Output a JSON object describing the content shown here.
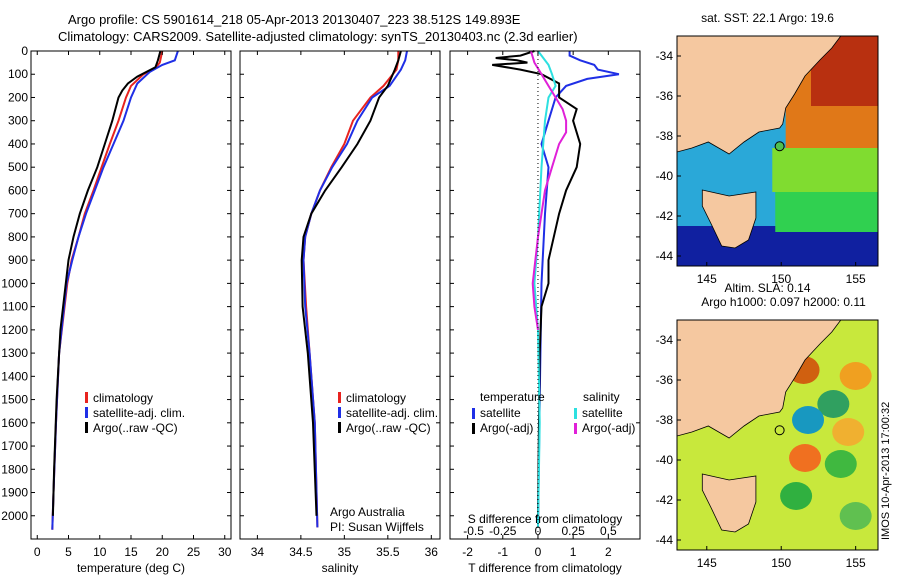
{
  "title": {
    "line1": "Argo profile: CS 5901614_218 05-Apr-2013 20130407_223 38.512S 149.893E",
    "line2": "Climatology: CARS2009. Satellite-adjusted climatology: synTS_20130403.nc (2.3d earlier)"
  },
  "colors": {
    "climatology": "#e8231f",
    "satellite": "#1f2fe6",
    "argo": "#000000",
    "s_satellite": "#2de0e0",
    "s_argo": "#e020d8"
  },
  "chart_data": [
    {
      "type": "line",
      "name": "temperature-profile",
      "xlabel": "temperature (deg C)",
      "ylabel": "",
      "xlim": [
        -1,
        31
      ],
      "ylim": [
        2100,
        0
      ],
      "xticks": [
        0,
        5,
        10,
        15,
        20,
        25,
        30
      ],
      "yticks": [
        0,
        100,
        200,
        300,
        400,
        500,
        600,
        700,
        800,
        900,
        1000,
        1100,
        1200,
        1300,
        1400,
        1500,
        1600,
        1700,
        1800,
        1900,
        2000
      ],
      "legend": [
        "climatology",
        "satellite-adj. clim.",
        "Argo(..raw -QC)"
      ],
      "series": [
        {
          "name": "climatology",
          "color": "#e8231f",
          "x": [
            20,
            19.6,
            19,
            17,
            15,
            14.2,
            13,
            11.6,
            10.3,
            9,
            7.6,
            6.6,
            5.5,
            4.8,
            3.5,
            3,
            2.6,
            2.4
          ],
          "y": [
            0,
            50,
            70,
            100,
            150,
            200,
            300,
            400,
            500,
            600,
            700,
            800,
            900,
            1000,
            1300,
            1600,
            1900,
            2060
          ]
        },
        {
          "name": "satellite-adj. clim.",
          "color": "#1f2fe6",
          "x": [
            22.5,
            22,
            20,
            18,
            16,
            15,
            13.8,
            12.2,
            10.6,
            9.2,
            7.8,
            6.6,
            5.6,
            4.7,
            3.5,
            3,
            2.6,
            2.4
          ],
          "y": [
            0,
            40,
            60,
            90,
            140,
            200,
            300,
            400,
            500,
            600,
            700,
            800,
            900,
            1000,
            1300,
            1600,
            1900,
            2060
          ]
        },
        {
          "name": "Argo(..raw -QC)",
          "color": "#000000",
          "x": [
            19.7,
            19.3,
            18.9,
            16,
            14.5,
            13.6,
            13,
            12,
            10.8,
            9.6,
            8.1,
            6.8,
            5.8,
            5,
            3.7,
            3.1,
            2.7,
            2.5
          ],
          "y": [
            0,
            40,
            70,
            110,
            140,
            170,
            200,
            300,
            400,
            500,
            600,
            700,
            800,
            900,
            1200,
            1500,
            1800,
            2000
          ]
        }
      ]
    },
    {
      "type": "line",
      "name": "salinity-profile",
      "xlabel": "salinity",
      "ylabel": "",
      "xlim": [
        33.8,
        36.1
      ],
      "ylim": [
        2100,
        0
      ],
      "xticks": [
        34,
        34.5,
        35,
        35.5,
        36
      ],
      "xticklabels": [
        "34",
        "34.5",
        "35",
        "35.5",
        "36"
      ],
      "legend": [
        "climatology",
        "satellite-adj. clim.",
        "Argo(..raw -QC)"
      ],
      "annotation": [
        "Argo Australia",
        "PI: Susan Wijffels"
      ],
      "series": [
        {
          "name": "climatology",
          "color": "#e8231f",
          "x": [
            35.62,
            35.62,
            35.6,
            35.45,
            35.3,
            35.1,
            35,
            34.85,
            34.72,
            34.62,
            34.55,
            34.53,
            34.56,
            34.6,
            34.66,
            34.69
          ],
          "y": [
            0,
            40,
            80,
            150,
            200,
            300,
            400,
            500,
            600,
            700,
            800,
            900,
            1100,
            1300,
            1600,
            2050
          ]
        },
        {
          "name": "satellite-adj. clim.",
          "color": "#1f2fe6",
          "x": [
            35.72,
            35.7,
            35.65,
            35.52,
            35.32,
            35.15,
            35.03,
            34.86,
            34.72,
            34.62,
            34.55,
            34.53,
            34.55,
            34.6,
            34.66,
            34.69
          ],
          "y": [
            0,
            40,
            80,
            150,
            200,
            300,
            400,
            500,
            600,
            700,
            800,
            900,
            1100,
            1300,
            1600,
            2050
          ]
        },
        {
          "name": "Argo(..raw -QC)",
          "color": "#000000",
          "x": [
            35.65,
            35.62,
            35.58,
            35.5,
            35.4,
            35.3,
            35.15,
            34.97,
            34.78,
            34.62,
            34.53,
            34.51,
            34.52,
            34.58,
            34.64,
            34.68
          ],
          "y": [
            0,
            40,
            80,
            150,
            200,
            300,
            400,
            500,
            600,
            700,
            800,
            900,
            1100,
            1300,
            1600,
            2000
          ]
        }
      ]
    },
    {
      "type": "line",
      "name": "difference-profile",
      "xlabel": "T difference from climatology",
      "xlabel_top": "S difference from climatology",
      "xlim": [
        -2.5,
        2.9
      ],
      "ylim": [
        2100,
        0
      ],
      "xticks": [
        -2,
        -1,
        0,
        1,
        2
      ],
      "xticklabels": [
        "-2",
        "-1",
        "0",
        "1",
        "2"
      ],
      "sticks": [
        -2,
        -1,
        0,
        1,
        2
      ],
      "sticklabels": [
        "-0.5",
        "-0.25",
        "0",
        "0.25",
        "0.5"
      ],
      "legend_groups": {
        "left": {
          "title": "temperature",
          "items": [
            "satellite",
            "Argo(-adj)"
          ]
        },
        "right": {
          "title": "salinity",
          "items": [
            "satellite",
            "Argo(-adj)"
          ]
        }
      },
      "series": [
        {
          "name": "T satellite",
          "color": "#1f2fe6",
          "x": [
            0.9,
            0.9,
            1.2,
            1.6,
            1.7,
            2.3,
            1.4,
            0.8,
            0.5,
            0.3,
            0.1,
            0.3,
            0.2,
            0.1,
            0.05,
            0
          ],
          "y": [
            0,
            20,
            40,
            60,
            80,
            100,
            120,
            150,
            200,
            300,
            400,
            500,
            700,
            1000,
            1500,
            2050
          ]
        },
        {
          "name": "T Argo(-adj)",
          "color": "#000000",
          "x": [
            -0.1,
            -0.5,
            -1.2,
            -0.6,
            -0.3,
            -1.3,
            -0.5,
            0.1,
            0.6,
            0.6,
            1.1,
            1.0,
            1.2,
            1.1,
            0.8,
            0.6,
            0.3,
            0.3,
            0.1,
            0.05,
            0
          ],
          "y": [
            0,
            20,
            30,
            40,
            50,
            60,
            80,
            100,
            140,
            200,
            250,
            300,
            400,
            500,
            600,
            700,
            900,
            1000,
            1100,
            1300,
            2000
          ]
        },
        {
          "name": "S satellite",
          "color": "#2de0e0",
          "x": [
            0,
            0.3,
            0.4,
            0.5,
            0.3,
            0.2,
            0.1,
            0,
            -0.1,
            0,
            0.05,
            0
          ],
          "y": [
            0,
            60,
            100,
            150,
            200,
            300,
            500,
            800,
            1000,
            1200,
            1600,
            2050
          ]
        },
        {
          "name": "S Argo(-adj)",
          "color": "#e020d8",
          "x": [
            -0.2,
            -0.1,
            0.1,
            0.3,
            0.5,
            0.7,
            0.8,
            0.8,
            0.6,
            0.4,
            0.2,
            0,
            -0.15,
            -0.1,
            0
          ],
          "y": [
            0,
            50,
            100,
            150,
            200,
            250,
            300,
            350,
            400,
            500,
            600,
            800,
            1000,
            1100,
            1200
          ]
        }
      ]
    },
    {
      "type": "heatmap",
      "name": "sst-map",
      "title": "sat. SST: 22.1  Argo: 19.6",
      "xticks": [
        145,
        150,
        155
      ],
      "yticks": [
        -34,
        -36,
        -38,
        -40,
        -42,
        -44
      ],
      "yticklabels": [
        "-34",
        "-36",
        "-38",
        "-40",
        "-42",
        "-44"
      ],
      "xlim": [
        143,
        156.5
      ],
      "ylim": [
        -44.5,
        -33
      ]
    },
    {
      "type": "heatmap",
      "name": "sla-map",
      "title": [
        "Altim. SLA: 0.14",
        "Argo h1000: 0.097 h2000: 0.11"
      ],
      "xticks": [
        145,
        150,
        155
      ],
      "yticks": [
        -34,
        -36,
        -38,
        -40,
        -42,
        -44
      ],
      "yticklabels": [
        "-34",
        "-36",
        "-38",
        "-40",
        "-42",
        "-44"
      ],
      "xlim": [
        143,
        156.5
      ],
      "ylim": [
        -44.5,
        -33
      ]
    }
  ],
  "stamp": "IMOS 10-Apr-2013 17:00:32"
}
